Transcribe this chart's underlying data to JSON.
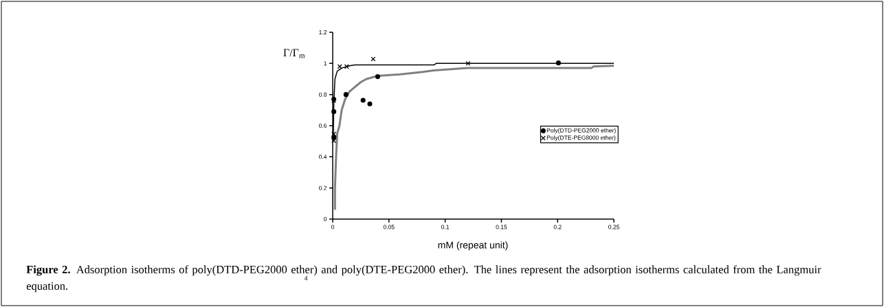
{
  "chart_data": {
    "type": "scatter",
    "ylabel": "Γ/Γ$_{m}$",
    "xlabel": "mM (repeat unit)",
    "xlim": [
      0,
      0.25
    ],
    "ylim": [
      0,
      1.2
    ],
    "xticks": [
      0,
      0.05,
      0.1,
      0.15,
      0.2,
      0.25
    ],
    "yticks": [
      0,
      0.2,
      0.4,
      0.6,
      0.8,
      1,
      1.2
    ],
    "legend": "right",
    "series": [
      {
        "name": "Poly(DTD-PEG2000 ether)",
        "marker": "circle",
        "color": "#000000",
        "x": [
          0.001,
          0.001,
          0.001,
          0.0118,
          0.027,
          0.033,
          0.04,
          0.2007
        ],
        "values": [
          0.77,
          0.69,
          0.525,
          0.8,
          0.763,
          0.74,
          0.915,
          1.003
        ]
      },
      {
        "name": "Poly(DTE-PEG8000 ether)",
        "marker": "cross",
        "color": "#000000",
        "x": [
          0.001,
          0.001,
          0.001,
          0.0063,
          0.0124,
          0.036,
          0.1204
        ],
        "values": [
          0.76,
          0.547,
          0.503,
          0.98,
          0.98,
          1.028,
          1.0
        ]
      },
      {
        "type": "line",
        "marker": "none",
        "color": "#000000",
        "x": [
          0.0005,
          0.001,
          0.002,
          0.004,
          0.008,
          0.015,
          0.02,
          0.09,
          0.092,
          0.25
        ],
        "values": [
          0.5,
          0.75,
          0.9,
          0.95,
          0.97,
          0.985,
          0.99,
          0.99,
          1.0,
          1.0
        ]
      },
      {
        "type": "line",
        "marker": "none",
        "color": "#808080",
        "x": [
          0.002,
          0.002,
          0.003,
          0.004,
          0.006,
          0.008,
          0.011,
          0.015,
          0.02,
          0.025,
          0.03,
          0.04,
          0.06,
          0.08,
          0.09,
          0.12,
          0.23,
          0.232,
          0.25
        ],
        "values": [
          0.06,
          0.2,
          0.4,
          0.55,
          0.6,
          0.7,
          0.77,
          0.82,
          0.85,
          0.88,
          0.9,
          0.92,
          0.93,
          0.945,
          0.955,
          0.97,
          0.97,
          0.98,
          0.985
        ]
      }
    ],
    "annotations": [
      "**Figure 2.** Adsorption isotherms of poly(DTD-PEG2000 ether) and poly(DTE-PEG2000 ether). The lines represent the adsorption isotherms calculated from the Langmuir equation.",
      "4"
    ]
  }
}
